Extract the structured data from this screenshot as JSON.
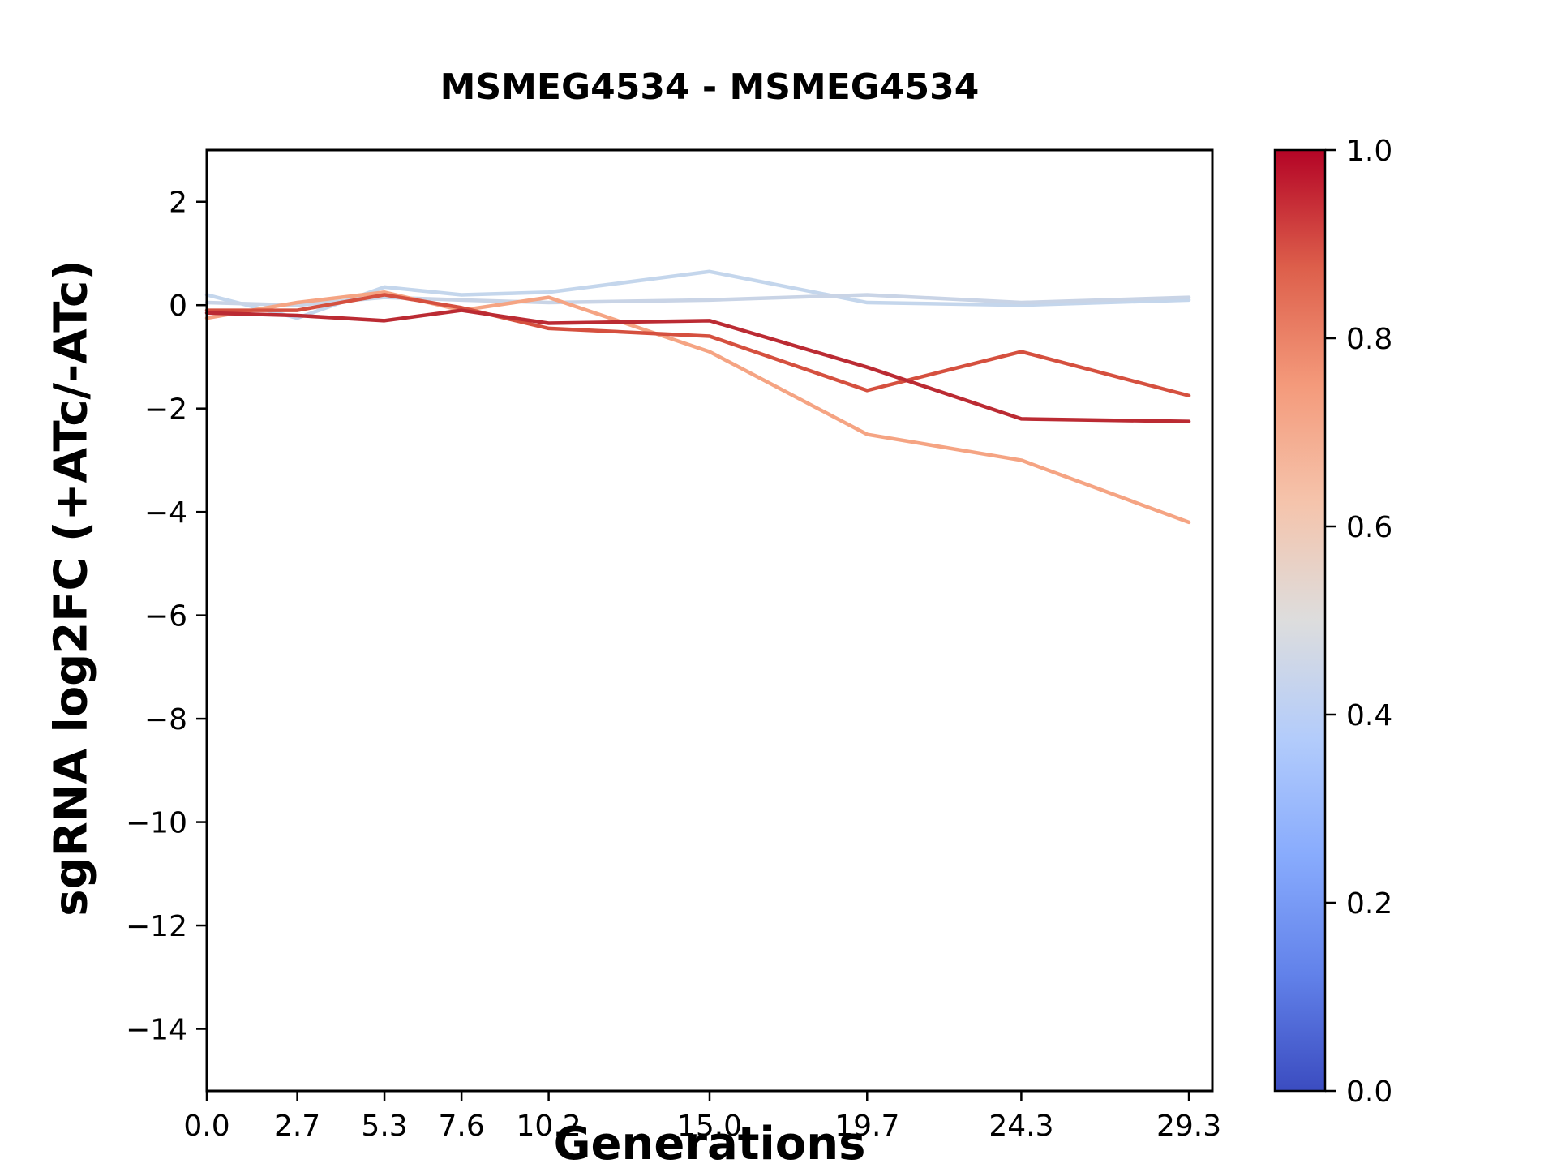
{
  "chart_data": {
    "type": "line",
    "title": "MSMEG4534 - MSMEG4534",
    "xlabel": "Generations",
    "ylabel": "sgRNA log2FC (+ATc/-ATc)",
    "x": [
      0.0,
      2.7,
      5.3,
      7.6,
      10.2,
      15.0,
      19.7,
      24.3,
      29.3
    ],
    "xtick_labels": [
      "0.0",
      "2.7",
      "5.3",
      "7.6",
      "10.2",
      "15.0",
      "19.7",
      "24.3",
      "29.3"
    ],
    "ytick_values": [
      2,
      0,
      -2,
      -4,
      -6,
      -8,
      -10,
      -12,
      -14
    ],
    "ytick_labels": [
      "2",
      "0",
      "−2",
      "−4",
      "−6",
      "−8",
      "−10",
      "−12",
      "−14"
    ],
    "xlim": [
      0,
      30
    ],
    "ylim": [
      -15.2,
      3.0
    ],
    "grid": false,
    "legend": "none",
    "series": [
      {
        "color": "#c4d6ec",
        "values": [
          0.2,
          -0.25,
          0.35,
          0.2,
          0.25,
          0.65,
          0.05,
          0.0,
          0.1
        ]
      },
      {
        "color": "#c9d4e6",
        "values": [
          0.05,
          0.0,
          0.15,
          0.1,
          0.05,
          0.1,
          0.2,
          0.05,
          0.15
        ]
      },
      {
        "color": "#f5a483",
        "values": [
          -0.25,
          0.05,
          0.25,
          -0.1,
          0.15,
          -0.9,
          -2.5,
          -3.0,
          -4.2
        ]
      },
      {
        "color": "#d5503f",
        "values": [
          -0.1,
          -0.1,
          0.2,
          -0.05,
          -0.45,
          -0.6,
          -1.65,
          -0.9,
          -1.75
        ]
      },
      {
        "color": "#bb2b33",
        "values": [
          -0.15,
          -0.2,
          -0.3,
          -0.1,
          -0.35,
          -0.3,
          -1.2,
          -2.2,
          -2.25
        ]
      }
    ],
    "colorbar": {
      "tick_values": [
        1.0,
        0.8,
        0.6,
        0.4,
        0.2,
        0.0
      ],
      "tick_labels": [
        "1.0",
        "0.8",
        "0.6",
        "0.4",
        "0.2",
        "0.0"
      ],
      "gradient": [
        {
          "pos": 0.0,
          "color": "#3b4cc0"
        },
        {
          "pos": 0.125,
          "color": "#6282ea"
        },
        {
          "pos": 0.25,
          "color": "#88abfd"
        },
        {
          "pos": 0.375,
          "color": "#b3ccfb"
        },
        {
          "pos": 0.5,
          "color": "#dddddd"
        },
        {
          "pos": 0.625,
          "color": "#f5c4ac"
        },
        {
          "pos": 0.75,
          "color": "#f49a7b"
        },
        {
          "pos": 0.875,
          "color": "#dd5f4b"
        },
        {
          "pos": 1.0,
          "color": "#b40426"
        }
      ]
    }
  }
}
